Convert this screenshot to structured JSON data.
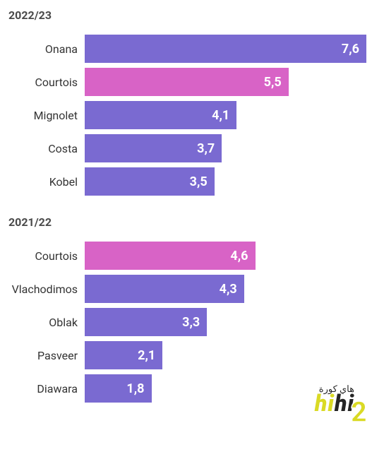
{
  "chart": {
    "type": "bar",
    "background_color": "#ffffff",
    "label_color": "#333333",
    "title_color": "#4a4a4a",
    "value_color": "#ffffff",
    "label_fontsize": 16,
    "title_fontsize": 16,
    "value_fontsize": 18,
    "default_bar_color": "#7a6ad1",
    "highlight_bar_color": "#d863c6",
    "max_value": 7.6,
    "max_bar_percent": 100,
    "sections": [
      {
        "title": "2022/23",
        "bars": [
          {
            "label": "Onana",
            "value": 7.6,
            "display": "7,6",
            "color": "#7a6ad1"
          },
          {
            "label": "Courtois",
            "value": 5.5,
            "display": "5,5",
            "color": "#d863c6"
          },
          {
            "label": "Mignolet",
            "value": 4.1,
            "display": "4,1",
            "color": "#7a6ad1"
          },
          {
            "label": "Costa",
            "value": 3.7,
            "display": "3,7",
            "color": "#7a6ad1"
          },
          {
            "label": "Kobel",
            "value": 3.5,
            "display": "3,5",
            "color": "#7a6ad1"
          }
        ]
      },
      {
        "title": "2021/22",
        "bars": [
          {
            "label": "Courtois",
            "value": 4.6,
            "display": "4,6",
            "color": "#d863c6"
          },
          {
            "label": "Vlachodimos",
            "value": 4.3,
            "display": "4,3",
            "color": "#7a6ad1"
          },
          {
            "label": "Oblak",
            "value": 3.3,
            "display": "3,3",
            "color": "#7a6ad1"
          },
          {
            "label": "Pasveer",
            "value": 2.1,
            "display": "2,1",
            "color": "#7a6ad1"
          },
          {
            "label": "Diawara",
            "value": 1.8,
            "display": "1,8",
            "color": "#7a6ad1"
          }
        ]
      }
    ]
  },
  "watermark": {
    "text_hi": "hi",
    "text_rest": "hi",
    "text_ar": "هاي كورة",
    "text_two": "2"
  }
}
